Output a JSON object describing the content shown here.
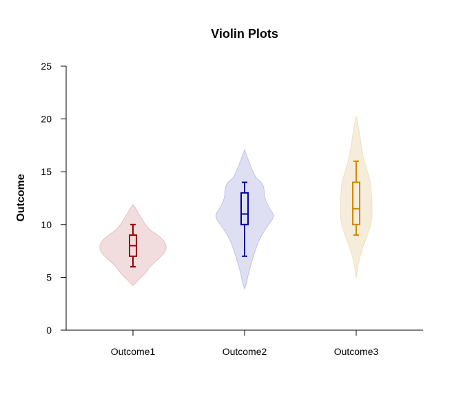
{
  "chart_data": {
    "type": "violin",
    "title": "Violin Plots",
    "xlabel": "",
    "ylabel": "Outcome",
    "ylim": [
      0,
      25
    ],
    "yticks": [
      0,
      5,
      10,
      15,
      20,
      25
    ],
    "categories": [
      "Outcome1",
      "Outcome2",
      "Outcome3"
    ],
    "grid": false,
    "series": [
      {
        "category": "Outcome1",
        "color": "#990000",
        "fill": "#f1dddd",
        "box": {
          "whisker_low": 6,
          "q1": 7,
          "median": 8,
          "q3": 9,
          "whisker_high": 10
        },
        "density": [
          [
            4.2,
            0.0
          ],
          [
            4.6,
            0.12
          ],
          [
            5.0,
            0.25
          ],
          [
            5.5,
            0.4
          ],
          [
            6.0,
            0.52
          ],
          [
            6.5,
            0.68
          ],
          [
            7.0,
            0.86
          ],
          [
            7.5,
            0.98
          ],
          [
            8.0,
            1.0
          ],
          [
            8.5,
            0.92
          ],
          [
            9.0,
            0.74
          ],
          [
            9.5,
            0.52
          ],
          [
            10.0,
            0.38
          ],
          [
            10.5,
            0.28
          ],
          [
            11.0,
            0.18
          ],
          [
            11.5,
            0.09
          ],
          [
            11.9,
            0.0
          ]
        ]
      },
      {
        "category": "Outcome2",
        "color": "#000099",
        "fill": "#dedff2",
        "box": {
          "whisker_low": 7,
          "q1": 10,
          "median": 11,
          "q3": 13,
          "whisker_high": 14
        },
        "density": [
          [
            3.9,
            0.0
          ],
          [
            4.5,
            0.06
          ],
          [
            5.5,
            0.13
          ],
          [
            6.5,
            0.22
          ],
          [
            7.5,
            0.32
          ],
          [
            8.5,
            0.44
          ],
          [
            9.5,
            0.62
          ],
          [
            10.5,
            0.84
          ],
          [
            11.0,
            0.86
          ],
          [
            11.5,
            0.76
          ],
          [
            12.5,
            0.62
          ],
          [
            13.5,
            0.58
          ],
          [
            14.0,
            0.5
          ],
          [
            14.5,
            0.34
          ],
          [
            15.5,
            0.19
          ],
          [
            16.5,
            0.07
          ],
          [
            17.1,
            0.0
          ]
        ]
      },
      {
        "category": "Outcome3",
        "color": "#cc8800",
        "fill": "#f5ecdb",
        "box": {
          "whisker_low": 9,
          "q1": 10,
          "median": 11.5,
          "q3": 14,
          "whisker_high": 16
        },
        "density": [
          [
            4.9,
            0.0
          ],
          [
            6.0,
            0.05
          ],
          [
            7.0,
            0.12
          ],
          [
            8.0,
            0.22
          ],
          [
            9.0,
            0.34
          ],
          [
            10.0,
            0.44
          ],
          [
            11.0,
            0.48
          ],
          [
            12.0,
            0.48
          ],
          [
            13.0,
            0.46
          ],
          [
            14.0,
            0.43
          ],
          [
            15.0,
            0.34
          ],
          [
            16.0,
            0.25
          ],
          [
            17.0,
            0.18
          ],
          [
            18.0,
            0.13
          ],
          [
            19.0,
            0.08
          ],
          [
            20.3,
            0.0
          ]
        ]
      }
    ]
  }
}
